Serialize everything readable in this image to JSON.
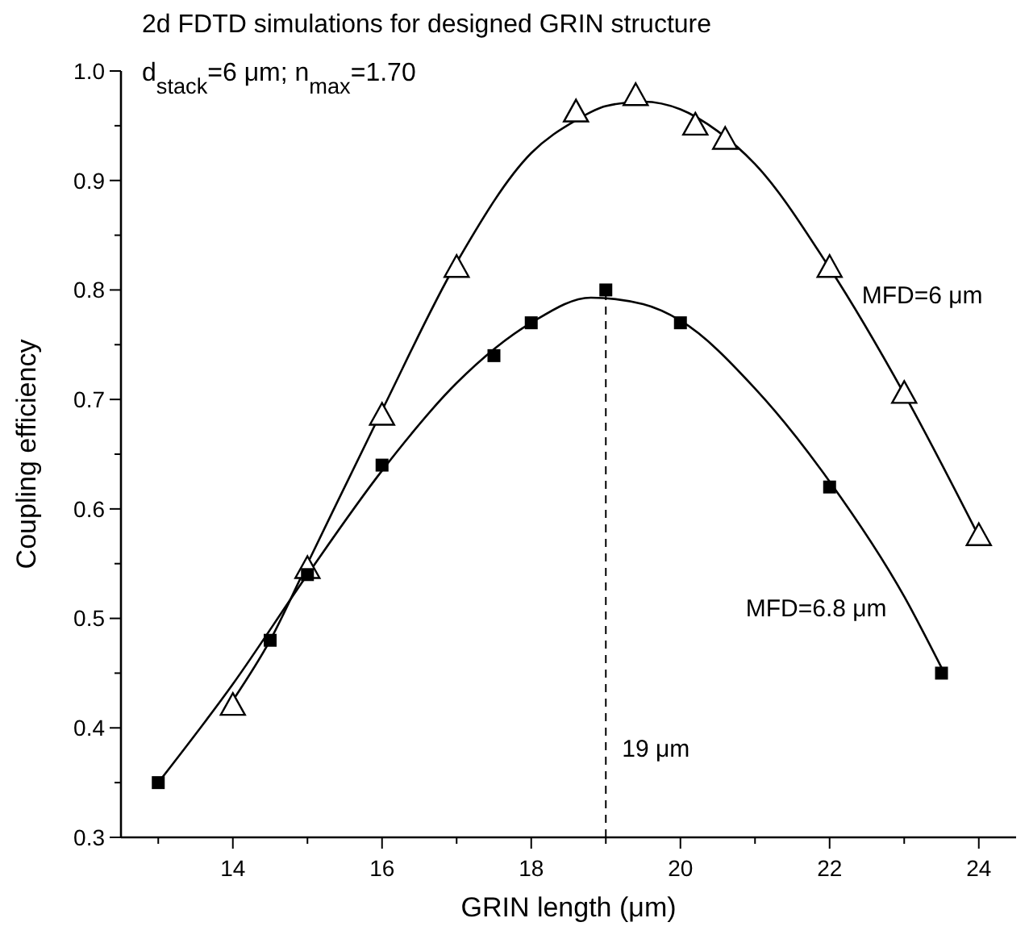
{
  "chart_data": {
    "type": "scatter",
    "title": "2d FDTD simulations for designed GRIN structure",
    "subtitle": "d$_{stack}$=6 μm; n$_{max}$=1.70",
    "xlabel": "GRIN length (μm)",
    "ylabel": "Coupling efficiency",
    "xlim": [
      12.5,
      24.5
    ],
    "xticks": [
      {
        "value": 13,
        "label": null
      },
      14,
      {
        "value": 15,
        "label": null
      },
      16,
      {
        "value": 17,
        "label": null
      },
      18,
      {
        "value": 19,
        "label": null
      },
      20,
      {
        "value": 21,
        "label": null
      },
      22,
      {
        "value": 23,
        "label": null
      },
      24
    ],
    "ylim": [
      0.3,
      1.0
    ],
    "yticks": [
      0.3,
      {
        "value": 0.35,
        "label": null
      },
      0.4,
      {
        "value": 0.45,
        "label": null
      },
      0.5,
      {
        "value": 0.55,
        "label": null
      },
      0.6,
      {
        "value": 0.65,
        "label": null
      },
      0.7,
      {
        "value": 0.75,
        "label": null
      },
      0.8,
      {
        "value": 0.85,
        "label": null
      },
      0.9,
      {
        "value": 0.95,
        "label": null
      },
      {
        "value": 1.0,
        "label": "1.0"
      }
    ],
    "grid": false,
    "series": [
      {
        "name": "MFD=6 μm",
        "color": "#000000",
        "marker": "triangle",
        "x": [
          14,
          15,
          16,
          17,
          18.6,
          19.4,
          20.2,
          20.6,
          22,
          23,
          24
        ],
        "values": [
          0.42,
          0.545,
          0.685,
          0.82,
          0.962,
          0.977,
          0.95,
          0.937,
          0.82,
          0.705,
          0.575
        ]
      },
      {
        "name": "MFD=6.8 μm",
        "color": "#000000",
        "marker": "square",
        "x": [
          13,
          14.5,
          15,
          16,
          17.5,
          18,
          19,
          20,
          22,
          23.5
        ],
        "values": [
          0.35,
          0.48,
          0.54,
          0.64,
          0.74,
          0.77,
          0.8,
          0.77,
          0.62,
          0.45
        ]
      },
      {
        "type": "line",
        "color": "#000000",
        "marker": "none",
        "line_style": "solid",
        "x": [
          14,
          14.5,
          15,
          16,
          17,
          18,
          18.6,
          19,
          19.5,
          20,
          20.5,
          21,
          22,
          23,
          24
        ],
        "values": [
          0.425,
          0.48,
          0.55,
          0.69,
          0.825,
          0.925,
          0.955,
          0.968,
          0.972,
          0.965,
          0.945,
          0.915,
          0.82,
          0.705,
          0.575
        ]
      },
      {
        "type": "line",
        "color": "#000000",
        "marker": "none",
        "line_style": "solid",
        "x": [
          13,
          14,
          15,
          16,
          17,
          18,
          18.8,
          19.5,
          20,
          21,
          22,
          23,
          23.5
        ],
        "values": [
          0.35,
          0.44,
          0.54,
          0.635,
          0.715,
          0.77,
          0.793,
          0.787,
          0.772,
          0.71,
          0.625,
          0.52,
          0.455
        ]
      }
    ],
    "ref_lines": [
      {
        "axis": "x",
        "value": 19,
        "label": "19 μm",
        "line_style": "dashed",
        "color": "#000000"
      }
    ]
  }
}
